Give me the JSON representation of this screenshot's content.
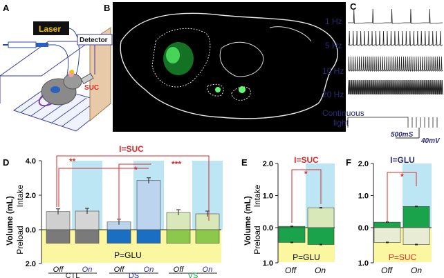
{
  "panels": {
    "A": "A",
    "B": "B",
    "C": "C",
    "D": "D",
    "E": "E",
    "F": "F"
  },
  "panel_a": {
    "laser": "Laser",
    "detector": "Detector",
    "suc": "SUC"
  },
  "panel_c": {
    "rows": [
      "1 Hz",
      "5 Hz",
      "10 Hz",
      "20 Hz"
    ],
    "continuous_1": "Continuous",
    "continuous_2": "light",
    "scale_time": "500mS",
    "scale_volt": "40mV"
  },
  "axis": {
    "ylabel": "Volume (mL)",
    "intake": "Intake",
    "preload": "Preload",
    "d_ticks": [
      "4.0",
      "2.0",
      "0.0",
      "2.0"
    ],
    "ef_ticks": [
      "2.0",
      "1.0",
      "0.0",
      "1.0"
    ]
  },
  "panel_d": {
    "top_label": "I=SUC",
    "bottom_label": "P=GLU",
    "off": "Off",
    "on": "On",
    "groups": [
      "CTL",
      "DS",
      "VS"
    ],
    "sig": [
      "**",
      "*",
      "***"
    ]
  },
  "panel_e": {
    "top_label": "I=SUC",
    "bottom_label": "P=GLU",
    "sig": "*",
    "off": "Off",
    "on": "On"
  },
  "panel_f": {
    "top_label": "I=GLU",
    "bottom_label": "P=SUC",
    "sig": "*",
    "off": "Off",
    "on": "On"
  },
  "colors": {
    "blue_shade": "#bde6f5",
    "yellow_shade": "#fbf7a0",
    "red": "#d62a2a",
    "navy": "#2a2a7a",
    "green": "#1aa34a",
    "dsblue": "#1b6fc2"
  },
  "chart_data": [
    {
      "type": "bar",
      "title": "I=SUC / P=GLU",
      "categories": [
        "CTL Off",
        "CTL On",
        "DS Off",
        "DS On",
        "VS Off",
        "VS On"
      ],
      "series": [
        {
          "name": "Intake",
          "values": [
            1.05,
            1.08,
            0.45,
            2.85,
            1.0,
            0.92
          ]
        },
        {
          "name": "Preload",
          "values": [
            0.8,
            0.8,
            0.8,
            0.8,
            0.8,
            0.8
          ]
        }
      ],
      "ylim": [
        -2.0,
        4.0
      ]
    },
    {
      "type": "bar",
      "title": "I=SUC / P=GLU",
      "categories": [
        "Off",
        "On"
      ],
      "series": [
        {
          "name": "Intake",
          "values": [
            0.04,
            0.62
          ]
        },
        {
          "name": "Preload",
          "values": [
            0.42,
            0.48
          ]
        }
      ],
      "ylim": [
        -1.0,
        2.0
      ]
    },
    {
      "type": "bar",
      "title": "I=GLU / P=SUC",
      "categories": [
        "Off",
        "On"
      ],
      "series": [
        {
          "name": "Intake",
          "values": [
            0.17,
            0.66
          ]
        },
        {
          "name": "Preload",
          "values": [
            0.42,
            0.48
          ]
        }
      ],
      "ylim": [
        -1.0,
        2.0
      ]
    }
  ]
}
